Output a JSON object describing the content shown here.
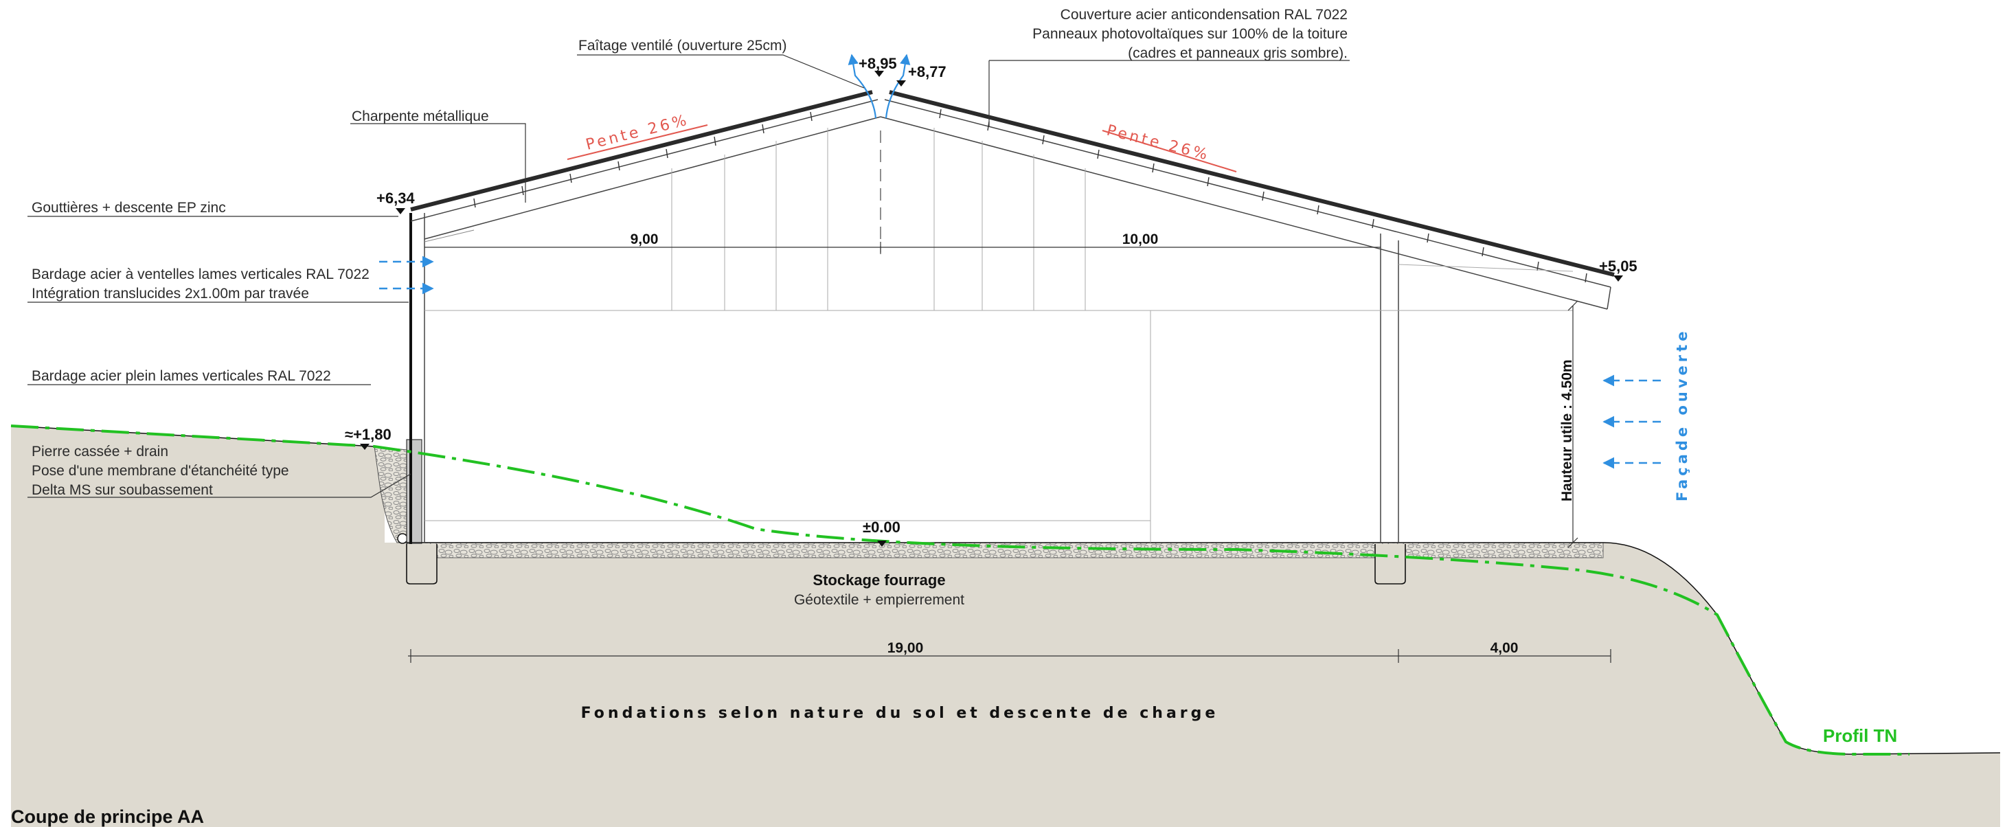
{
  "title": "Coupe de principe AA",
  "annotations": {
    "faitage": "Faîtage ventilé (ouverture 25cm)",
    "couverture_1": "Couverture acier anticondensation RAL 7022",
    "couverture_2": "Panneaux photovoltaïques sur 100% de la toiture",
    "couverture_3": "(cadres et panneaux gris sombre).",
    "charpente": "Charpente métallique",
    "gouttieres": "Gouttières + descente EP zinc",
    "bardage_ventelles": "Bardage acier à ventelles lames verticales RAL 7022",
    "translucides": "Intégration translucides 2x1.00m par travée",
    "bardage_plein": "Bardage acier plein lames verticales RAL 7022",
    "pierre": "Pierre cassée + drain",
    "membrane": "Pose d'une membrane d'étanchéité type",
    "delta": "Delta MS sur soubassement"
  },
  "levels": {
    "ridge_high": "+8,95",
    "ridge_low": "+8,77",
    "eave_left": "+6,34",
    "eave_right": "+5,05",
    "ground_left": "≈+1,80",
    "floor": "±0.00"
  },
  "slopes": {
    "left": "Pente 26%",
    "right": "Pente 26%"
  },
  "dimensions": {
    "span_left": "9,00",
    "span_right": "10,00",
    "overall": "19,00",
    "overhang": "4,00"
  },
  "hauteur_utile": "Hauteur utile : 4.50m",
  "facade_ouverte": "Façade ouverte",
  "stockage": "Stockage fourrage",
  "geotextile": "Géotextile + empierrement",
  "fondations": "Fondations selon nature du sol et descente de charge",
  "profil_tn": "Profil TN",
  "colors": {
    "ground": "#dedad0",
    "profile": "#22c122",
    "slope_text": "#e2584f",
    "airflow": "#2f8fe0",
    "roof": "#2a2a2a"
  }
}
